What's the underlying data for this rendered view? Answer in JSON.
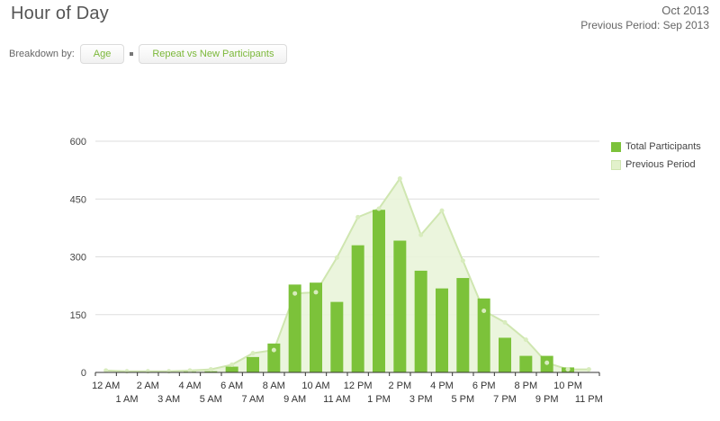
{
  "header": {
    "title": "Hour of Day",
    "current_period": "Oct 2013",
    "previous_period": "Previous Period: Sep 2013"
  },
  "breakdown": {
    "label": "Breakdown by:",
    "options": [
      "Age",
      "Repeat vs New Participants"
    ]
  },
  "colors": {
    "bar": "#7cc23a",
    "previous_fill": "#e9f4d9",
    "previous_line": "#cfe6b0",
    "grid": "#dddddd"
  },
  "chart_data": {
    "type": "bar",
    "title": "Hour of Day",
    "categories": [
      "12 AM",
      "1 AM",
      "2 AM",
      "3 AM",
      "4 AM",
      "5 AM",
      "6 AM",
      "7 AM",
      "8 AM",
      "9 AM",
      "10 AM",
      "11 AM",
      "12 PM",
      "1 PM",
      "2 PM",
      "3 PM",
      "4 PM",
      "5 PM",
      "6 PM",
      "7 PM",
      "8 PM",
      "9 PM",
      "10 PM",
      "11 PM"
    ],
    "xtick_labels_top": [
      "12 AM",
      "5 AM",
      "7 AM",
      "9 AM",
      "11 AM",
      "1 PM",
      "3 PM",
      "5 PM",
      "7 PM",
      "9 PM",
      "11 PM"
    ],
    "xtick_labels_bottom": [
      "4 AM",
      "6 AM",
      "8 AM",
      "10 AM",
      "12 PM",
      "2 PM",
      "4 PM",
      "6 PM",
      "8 PM",
      "10 PM"
    ],
    "yticks": [
      0,
      150,
      300,
      450,
      600
    ],
    "ylim": [
      0,
      600
    ],
    "grid": true,
    "legend_position": "right",
    "series": [
      {
        "name": "Total Participants",
        "type": "bar",
        "values": [
          0,
          0,
          0,
          1,
          2,
          3,
          15,
          40,
          75,
          228,
          233,
          183,
          330,
          422,
          342,
          264,
          218,
          245,
          192,
          90,
          43,
          43,
          13,
          0
        ]
      },
      {
        "name": "Previous Period",
        "type": "area",
        "values": [
          5,
          3,
          3,
          3,
          5,
          8,
          20,
          50,
          58,
          205,
          208,
          298,
          403,
          425,
          503,
          357,
          420,
          290,
          160,
          130,
          85,
          25,
          8,
          8
        ]
      }
    ]
  }
}
